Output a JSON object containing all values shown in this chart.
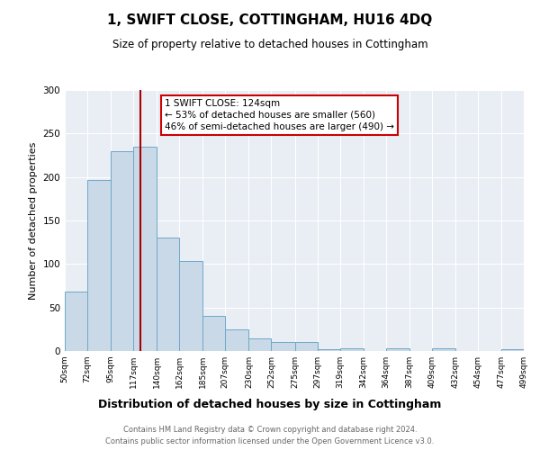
{
  "title": "1, SWIFT CLOSE, COTTINGHAM, HU16 4DQ",
  "subtitle": "Size of property relative to detached houses in Cottingham",
  "xlabel": "Distribution of detached houses by size in Cottingham",
  "ylabel": "Number of detached properties",
  "bin_edges": [
    50,
    72,
    95,
    117,
    140,
    162,
    185,
    207,
    230,
    252,
    275,
    297,
    319,
    342,
    364,
    387,
    409,
    432,
    454,
    477,
    499
  ],
  "bar_heights": [
    68,
    197,
    230,
    235,
    130,
    103,
    40,
    25,
    14,
    10,
    10,
    2,
    3,
    0,
    3,
    0,
    3,
    0,
    0,
    2
  ],
  "bar_color": "#c9d9e8",
  "bar_edge_color": "#6fa8c8",
  "property_size": 124,
  "vline_color": "#aa0000",
  "annotation_line1": "1 SWIFT CLOSE: 124sqm",
  "annotation_line2": "← 53% of detached houses are smaller (560)",
  "annotation_line3": "46% of semi-detached houses are larger (490) →",
  "annotation_box_color": "#ffffff",
  "annotation_box_edge_color": "#cc0000",
  "ylim": [
    0,
    300
  ],
  "yticks": [
    0,
    50,
    100,
    150,
    200,
    250,
    300
  ],
  "footer_line1": "Contains HM Land Registry data © Crown copyright and database right 2024.",
  "footer_line2": "Contains public sector information licensed under the Open Government Licence v3.0.",
  "background_color": "#ffffff",
  "plot_bg_color": "#e8eef4",
  "tick_labels": [
    "50sqm",
    "72sqm",
    "95sqm",
    "117sqm",
    "140sqm",
    "162sqm",
    "185sqm",
    "207sqm",
    "230sqm",
    "252sqm",
    "275sqm",
    "297sqm",
    "319sqm",
    "342sqm",
    "364sqm",
    "387sqm",
    "409sqm",
    "432sqm",
    "454sqm",
    "477sqm",
    "499sqm"
  ],
  "title_fontsize": 11,
  "subtitle_fontsize": 8.5,
  "xlabel_fontsize": 9,
  "ylabel_fontsize": 8,
  "tick_fontsize": 6.5,
  "footer_fontsize": 6
}
